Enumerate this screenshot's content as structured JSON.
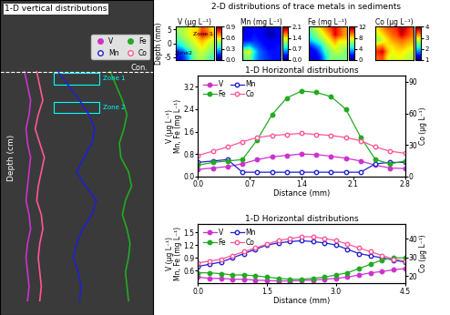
{
  "figure_texts": {
    "heatmap_group_title": "2-D distributions of trace metals in sediments"
  },
  "chart_data": [
    {
      "type": "profile",
      "title": "1-D vertical distributions",
      "y_label": "Depth (cm)",
      "interface_label": "Con.",
      "interface_depth": 5,
      "zone_labels": [
        "Zone 1",
        "Zone 2"
      ],
      "zone_depths": [
        5.5,
        7.5
      ],
      "tick_labels": false,
      "legend": "upper right",
      "xlim": [
        0,
        10
      ],
      "ylim": [
        22,
        0
      ],
      "x": [
        5,
        6,
        7,
        8,
        9,
        10,
        11,
        12,
        13,
        14,
        15,
        16,
        17,
        18,
        19,
        20,
        21
      ],
      "series": [
        {
          "name": "V",
          "color": "#cc33cc",
          "marker": "circle",
          "values": [
            1.6,
            1.8,
            2.0,
            1.9,
            1.7,
            1.8,
            2.0,
            1.9,
            1.8,
            1.7,
            1.9,
            2.0,
            1.8,
            1.7,
            1.8,
            1.9,
            1.8
          ]
        },
        {
          "name": "Mn",
          "color": "#2020d0",
          "marker": "open_circle",
          "values": [
            3.8,
            4.5,
            5.2,
            5.8,
            6.2,
            6.0,
            5.5,
            5.0,
            5.6,
            6.3,
            6.0,
            5.4,
            5.0,
            4.8,
            5.1,
            5.3,
            5.2
          ]
        },
        {
          "name": "Fe",
          "color": "#22aa22",
          "marker": "circle",
          "values": [
            7.2,
            7.6,
            8.0,
            8.3,
            8.1,
            7.8,
            7.9,
            8.4,
            8.6,
            8.2,
            8.0,
            8.3,
            8.5,
            8.4,
            8.2,
            8.3,
            8.4
          ]
        },
        {
          "name": "Co",
          "color": "#ff5599",
          "marker": "open_circle",
          "values": [
            2.4,
            2.6,
            2.8,
            2.5,
            2.3,
            2.6,
            2.9,
            2.7,
            2.5,
            2.4,
            2.7,
            2.8,
            2.6,
            2.5,
            2.6,
            2.7,
            2.6
          ]
        }
      ]
    },
    {
      "type": "heatmap",
      "title": "V (μg L⁻¹)",
      "y_label": "Depth (mm)",
      "tick_labels": "y",
      "zone_labels": [
        "Zone 1",
        "Zone2"
      ],
      "xlim": [
        0,
        8
      ],
      "ylim": [
        -6,
        6
      ],
      "yticks": [
        5,
        0,
        -5
      ],
      "clim": [
        0.0,
        0.9
      ],
      "cticks": [
        0.0,
        0.3,
        0.6,
        0.9
      ],
      "cells": [
        [
          0.5,
          0.5,
          0.55,
          0.6,
          0.6,
          0.75,
          0.7,
          0.6
        ],
        [
          0.45,
          0.5,
          0.55,
          0.6,
          0.65,
          0.8,
          0.75,
          0.65
        ],
        [
          0.4,
          0.45,
          0.5,
          0.55,
          0.6,
          0.65,
          0.6,
          0.55
        ],
        [
          0.3,
          0.35,
          0.45,
          0.5,
          0.55,
          0.6,
          0.55,
          0.5
        ],
        [
          0.15,
          0.2,
          0.3,
          0.45,
          0.5,
          0.55,
          0.5,
          0.45
        ],
        [
          0.1,
          0.15,
          0.25,
          0.4,
          0.5,
          0.5,
          0.45,
          0.4
        ]
      ]
    },
    {
      "type": "heatmap",
      "title": "Mn (mg L⁻¹)",
      "tick_labels": false,
      "xlim": [
        0,
        8
      ],
      "ylim": [
        -6,
        6
      ],
      "clim": [
        0.0,
        2.1
      ],
      "cticks": [
        0.0,
        0.7,
        1.4,
        2.1
      ],
      "cells": [
        [
          0.2,
          0.2,
          0.25,
          0.2,
          0.2,
          0.1,
          0.15,
          0.2
        ],
        [
          0.2,
          0.25,
          0.3,
          0.25,
          0.2,
          0.1,
          0.1,
          0.2
        ],
        [
          0.3,
          0.3,
          0.35,
          0.3,
          0.25,
          0.2,
          0.2,
          0.25
        ],
        [
          0.6,
          0.7,
          0.5,
          0.4,
          0.3,
          0.25,
          0.25,
          0.3
        ],
        [
          1.2,
          1.3,
          0.8,
          0.5,
          0.4,
          0.3,
          0.3,
          0.3
        ],
        [
          1.0,
          1.1,
          0.7,
          0.5,
          0.4,
          0.35,
          0.3,
          0.3
        ]
      ]
    },
    {
      "type": "heatmap",
      "title": "Fe (mg L⁻¹)",
      "tick_labels": false,
      "xlim": [
        0,
        8
      ],
      "ylim": [
        -6,
        6
      ],
      "clim": [
        0,
        12
      ],
      "cticks": [
        0,
        4,
        8,
        12
      ],
      "cells": [
        [
          6,
          7,
          8,
          9,
          10,
          11,
          10,
          9
        ],
        [
          5,
          6,
          7,
          8,
          9,
          11,
          10,
          9
        ],
        [
          4,
          5,
          6,
          7,
          8,
          9,
          8,
          8
        ],
        [
          2,
          3,
          4,
          6,
          7,
          8,
          7,
          7
        ],
        [
          1,
          1.5,
          3,
          5,
          6,
          7,
          7,
          6
        ],
        [
          1,
          1,
          2,
          4,
          6,
          6,
          6,
          6
        ]
      ]
    },
    {
      "type": "heatmap",
      "title": "Co (μg L⁻¹)",
      "tick_labels": false,
      "xlim": [
        0,
        8
      ],
      "ylim": [
        -6,
        6
      ],
      "clim": [
        1,
        4
      ],
      "cticks": [
        1,
        2,
        3,
        4
      ],
      "cells": [
        [
          3.0,
          3.2,
          3.4,
          3.5,
          3.6,
          3.9,
          3.7,
          3.5
        ],
        [
          2.8,
          3.0,
          3.2,
          3.4,
          3.5,
          3.8,
          3.6,
          3.4
        ],
        [
          2.6,
          2.8,
          3.0,
          3.2,
          3.3,
          3.4,
          3.3,
          3.2
        ],
        [
          3.2,
          3.3,
          3.0,
          3.0,
          3.1,
          3.2,
          3.1,
          3.0
        ],
        [
          3.6,
          3.8,
          3.2,
          2.9,
          3.0,
          3.0,
          2.9,
          2.8
        ],
        [
          3.4,
          3.5,
          3.0,
          2.8,
          2.9,
          2.9,
          2.8,
          2.7
        ]
      ]
    },
    {
      "type": "line",
      "title": "1-D Horizontal distributions",
      "x_label": "Distance (mm)",
      "y_label": "V (μg L⁻¹)\nMn, Fe (mg L⁻¹)",
      "y2_label": "Co (μg L⁻¹)",
      "legend": "upper left",
      "xlim": [
        0.0,
        2.8
      ],
      "xticks": [
        0.0,
        0.7,
        1.4,
        2.1,
        2.8
      ],
      "ylim": [
        0.0,
        3.6
      ],
      "yticks": [
        0.0,
        0.8,
        1.6,
        2.4,
        3.2
      ],
      "y2lim": [
        0,
        96
      ],
      "y2ticks": [
        0,
        30,
        60,
        90
      ],
      "x": [
        0.0,
        0.2,
        0.4,
        0.6,
        0.8,
        1.0,
        1.2,
        1.4,
        1.6,
        1.8,
        2.0,
        2.2,
        2.4,
        2.6,
        2.8
      ],
      "series": [
        {
          "name": "V",
          "color": "#cc33cc",
          "marker": "circle",
          "values": [
            0.25,
            0.3,
            0.35,
            0.45,
            0.6,
            0.7,
            0.75,
            0.8,
            0.78,
            0.72,
            0.65,
            0.55,
            0.4,
            0.3,
            0.28
          ]
        },
        {
          "name": "Mn",
          "color": "#2020d0",
          "marker": "open_circle",
          "values": [
            0.5,
            0.55,
            0.6,
            0.15,
            0.15,
            0.15,
            0.15,
            0.15,
            0.15,
            0.15,
            0.15,
            0.15,
            0.45,
            0.5,
            0.5
          ]
        },
        {
          "name": "Fe",
          "color": "#22aa22",
          "marker": "circle",
          "values": [
            0.4,
            0.5,
            0.55,
            0.6,
            1.3,
            2.2,
            2.8,
            3.05,
            3.0,
            2.85,
            2.4,
            1.4,
            0.6,
            0.45,
            0.55
          ]
        },
        {
          "name": "Co",
          "color": "#ff5599",
          "marker": "open_circle",
          "axis": "y2",
          "values": [
            20,
            24,
            28,
            33,
            37,
            39,
            40,
            41,
            40,
            39,
            37,
            34,
            28,
            24,
            22
          ]
        }
      ]
    },
    {
      "type": "line",
      "title": "1-D Horizontal distributions",
      "x_label": "Distance (mm)",
      "y_label": "V (μg L⁻¹)\nMn, Fe (mg L⁻¹)",
      "y2_label": "Co (μg L⁻¹)",
      "legend": "upper left",
      "xlim": [
        0.0,
        4.5
      ],
      "xticks": [
        0.0,
        1.5,
        3.0,
        4.5
      ],
      "ylim": [
        0.3,
        1.7
      ],
      "yticks": [
        0.6,
        0.9,
        1.2,
        1.5
      ],
      "y2lim": [
        16,
        48
      ],
      "y2ticks": [
        20,
        30,
        40
      ],
      "x": [
        0.0,
        0.25,
        0.5,
        0.75,
        1.0,
        1.25,
        1.5,
        1.75,
        2.0,
        2.25,
        2.5,
        2.75,
        3.0,
        3.25,
        3.5,
        3.75,
        4.0,
        4.25,
        4.5
      ],
      "series": [
        {
          "name": "V",
          "color": "#cc33cc",
          "marker": "circle",
          "values": [
            0.45,
            0.42,
            0.42,
            0.4,
            0.4,
            0.38,
            0.37,
            0.36,
            0.36,
            0.37,
            0.38,
            0.4,
            0.42,
            0.45,
            0.5,
            0.55,
            0.58,
            0.62,
            0.65
          ]
        },
        {
          "name": "Mn",
          "color": "#2020d0",
          "marker": "open_circle",
          "values": [
            0.7,
            0.75,
            0.8,
            0.9,
            1.0,
            1.1,
            1.2,
            1.25,
            1.28,
            1.3,
            1.28,
            1.25,
            1.2,
            1.1,
            1.0,
            0.95,
            0.9,
            0.85,
            0.8
          ]
        },
        {
          "name": "Fe",
          "color": "#22aa22",
          "marker": "circle",
          "values": [
            0.55,
            0.55,
            0.53,
            0.5,
            0.5,
            0.48,
            0.45,
            0.42,
            0.4,
            0.4,
            0.42,
            0.45,
            0.5,
            0.55,
            0.65,
            0.75,
            0.85,
            0.9,
            0.9
          ]
        },
        {
          "name": "Co",
          "color": "#ff5599",
          "marker": "open_circle",
          "axis": "y2",
          "values": [
            27,
            28,
            29,
            31,
            33,
            35,
            37,
            39,
            40,
            41,
            41,
            40,
            39,
            37,
            35,
            33,
            31,
            29,
            28
          ]
        }
      ]
    }
  ]
}
